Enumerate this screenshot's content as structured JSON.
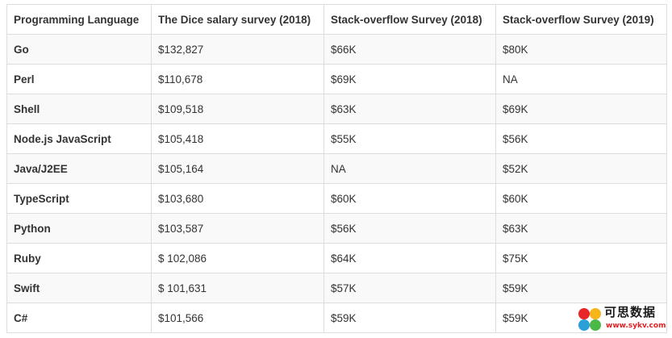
{
  "table": {
    "headers": [
      "Programming Language",
      "The Dice salary survey (2018)",
      "Stack-overflow Survey (2018)",
      "Stack-overflow Survey (2019)"
    ],
    "rows": [
      [
        "Go",
        "$132,827",
        "$66K",
        "$80K"
      ],
      [
        "Perl",
        "$110,678",
        "$69K",
        "NA"
      ],
      [
        "Shell",
        "$109,518",
        "$63K",
        "$69K"
      ],
      [
        "Node.js JavaScript",
        "$105,418",
        "$55K",
        "$56K"
      ],
      [
        "Java/J2EE",
        "$105,164",
        "NA",
        "$52K"
      ],
      [
        "TypeScript",
        "$103,680",
        "$60K",
        "$60K"
      ],
      [
        "Python",
        "$103,587",
        "$56K",
        "$63K"
      ],
      [
        "Ruby",
        "$ 102,086",
        "$64K",
        "$75K"
      ],
      [
        "Swift",
        "$ 101,631",
        "$57K",
        "$59K"
      ],
      [
        "C#",
        "$101,566",
        "$59K",
        "$59K"
      ]
    ]
  },
  "watermark": {
    "text": "可思数据",
    "url": "www.sykv.com",
    "logo_colors": [
      "#e8262a",
      "#f6b51a",
      "#2a9fd8",
      "#4cb848"
    ]
  }
}
